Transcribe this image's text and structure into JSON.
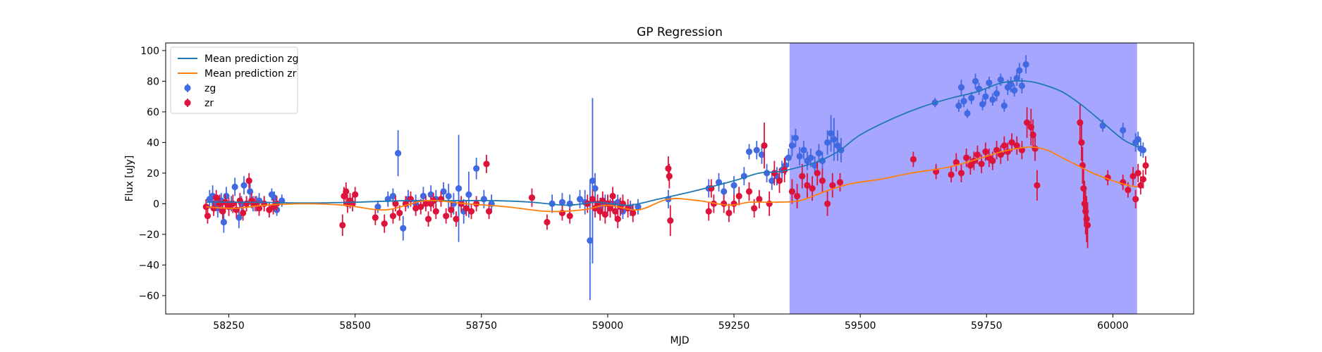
{
  "chart_data": {
    "type": "scatter",
    "title": "GP Regression",
    "xlabel": "MJD",
    "ylabel": "Flux [uJy]",
    "xlim": [
      58125,
      60160
    ],
    "ylim": [
      -72,
      105
    ],
    "xticks": [
      58250,
      58500,
      58750,
      59000,
      59250,
      59500,
      59750,
      60000
    ],
    "yticks": [
      -60,
      -40,
      -20,
      0,
      20,
      40,
      60,
      80,
      100
    ],
    "shaded_region": {
      "x0": 59360,
      "x1": 60048,
      "color": "#a6a6ff"
    },
    "legend_position": "upper left",
    "legend": [
      "Mean prediction zg",
      "Mean prediction zr",
      "zg",
      "zr"
    ],
    "series": [
      {
        "name": "Mean prediction zg",
        "kind": "line",
        "color": "#1f77b4",
        "x": [
          58205,
          58300,
          58400,
          58500,
          58600,
          58700,
          58780,
          58850,
          58920,
          58980,
          59040,
          59100,
          59180,
          59250,
          59300,
          59340,
          59380,
          59420,
          59460,
          59500,
          59560,
          59620,
          59680,
          59730,
          59770,
          59800,
          59830,
          59860,
          59900,
          59940,
          59980,
          60020,
          60050
        ],
        "values": [
          1,
          1,
          0.5,
          1,
          2,
          2,
          2,
          1,
          -1,
          1,
          -1,
          3,
          9,
          15,
          20,
          21,
          24,
          28,
          35,
          45,
          55,
          63,
          69,
          73,
          78,
          80,
          80,
          78,
          73,
          64,
          53,
          42,
          37
        ]
      },
      {
        "name": "Mean prediction zr",
        "kind": "line",
        "color": "#ff7f0e",
        "x": [
          58205,
          58260,
          58320,
          58400,
          58480,
          58560,
          58640,
          58720,
          58800,
          58880,
          58950,
          59000,
          59060,
          59120,
          59180,
          59240,
          59280,
          59330,
          59380,
          59430,
          59480,
          59540,
          59600,
          59660,
          59700,
          59740,
          59780,
          59810,
          59840,
          59870,
          59900,
          59930,
          59960,
          60000,
          60030,
          60050
        ],
        "values": [
          -2,
          -3,
          -1,
          0,
          -1,
          -4,
          2,
          0,
          -2,
          -5,
          -4,
          -1,
          -4,
          3,
          2,
          -1,
          1,
          1,
          2,
          8,
          13,
          16,
          20,
          23,
          26,
          30,
          34,
          36,
          37,
          35,
          30,
          25,
          20,
          15,
          12,
          11
        ]
      },
      {
        "name": "zg",
        "kind": "errorbar",
        "color": "#4169e1",
        "x": [
          58212,
          58218,
          58222,
          58228,
          58235,
          58240,
          58245,
          58255,
          58262,
          58270,
          58275,
          58280,
          58285,
          58292,
          58298,
          58305,
          58310,
          58320,
          58335,
          58340,
          58345,
          58355,
          58490,
          58545,
          58565,
          58575,
          58585,
          58595,
          58605,
          58620,
          58635,
          58650,
          58660,
          58675,
          58685,
          58695,
          58705,
          58715,
          58725,
          58740,
          58755,
          58770,
          58890,
          58910,
          58925,
          58945,
          58955,
          58965,
          58970,
          58975,
          58980,
          58985,
          58990,
          58995,
          59000,
          59010,
          59020,
          59030,
          59045,
          59060,
          59120,
          59200,
          59220,
          59230,
          59250,
          59270,
          59280,
          59295,
          59305,
          59315,
          59325,
          59335,
          59345,
          59352,
          59358,
          59365,
          59372,
          59380,
          59388,
          59395,
          59402,
          59410,
          59418,
          59425,
          59435,
          59442,
          59448,
          59455,
          59462,
          59648,
          59695,
          59700,
          59705,
          59712,
          59720,
          59728,
          59735,
          59742,
          59748,
          59755,
          59762,
          59770,
          59778,
          59785,
          59792,
          59798,
          59805,
          59810,
          59815,
          59820,
          59828,
          59980,
          60020,
          60045,
          60050,
          60055,
          60060
        ],
        "values": [
          3,
          5,
          0,
          -3,
          2,
          -12,
          5,
          0,
          11,
          -9,
          0,
          12,
          0,
          8,
          0,
          0,
          2,
          0,
          6,
          4,
          -4,
          2,
          1,
          -2,
          3,
          5,
          33,
          -16,
          3,
          0,
          5,
          6,
          3,
          8,
          5,
          0,
          10,
          -5,
          6,
          23,
          3,
          0,
          0,
          1,
          0,
          3,
          1,
          -24,
          15,
          10,
          0,
          -2,
          0,
          0,
          0,
          0,
          1,
          -5,
          -3,
          -2,
          3,
          10,
          14,
          8,
          12,
          18,
          34,
          35,
          32,
          20,
          15,
          18,
          22,
          25,
          30,
          38,
          43,
          31,
          35,
          28,
          30,
          25,
          33,
          28,
          40,
          46,
          42,
          38,
          35,
          66,
          64,
          76,
          67,
          59,
          69,
          80,
          75,
          65,
          70,
          79,
          68,
          72,
          81,
          64,
          76,
          78,
          74,
          82,
          87,
          77,
          91,
          51,
          48,
          40,
          42,
          36,
          35
        ],
        "errors": [
          6,
          7,
          5,
          6,
          5,
          7,
          6,
          5,
          6,
          7,
          5,
          6,
          5,
          6,
          5,
          5,
          5,
          5,
          4,
          4,
          4,
          4,
          4,
          4,
          5,
          5,
          15,
          8,
          6,
          6,
          6,
          6,
          6,
          6,
          8,
          7,
          35,
          8,
          15,
          7,
          6,
          6,
          6,
          6,
          6,
          6,
          8,
          39,
          54,
          10,
          6,
          6,
          6,
          6,
          5,
          5,
          5,
          5,
          5,
          5,
          6,
          6,
          6,
          6,
          6,
          6,
          5,
          6,
          6,
          6,
          6,
          6,
          6,
          6,
          6,
          7,
          6,
          6,
          6,
          6,
          6,
          6,
          6,
          6,
          8,
          12,
          14,
          10,
          8,
          3,
          4,
          5,
          4,
          3,
          4,
          5,
          4,
          4,
          5,
          4,
          4,
          5,
          4,
          4,
          5,
          5,
          4,
          5,
          5,
          5,
          6,
          4,
          5,
          6,
          5,
          5,
          5
        ]
      },
      {
        "name": "zr",
        "kind": "errorbar",
        "color": "#dc143c",
        "x": [
          58205,
          58208,
          58220,
          58225,
          58232,
          58238,
          58243,
          58250,
          58258,
          58265,
          58272,
          58278,
          58285,
          58290,
          58295,
          58302,
          58310,
          58320,
          58330,
          58338,
          58345,
          58475,
          58478,
          58482,
          58485,
          58490,
          58495,
          58500,
          58540,
          58558,
          58575,
          58580,
          58588,
          58600,
          58610,
          58620,
          58630,
          58640,
          58645,
          58650,
          58655,
          58660,
          58670,
          58680,
          58690,
          58700,
          58710,
          58720,
          58730,
          58740,
          58760,
          58765,
          58850,
          58880,
          58910,
          58925,
          58960,
          58970,
          58975,
          58980,
          58985,
          58990,
          58995,
          59000,
          59005,
          59010,
          59015,
          59020,
          59025,
          59030,
          59040,
          59050,
          59120,
          59122,
          59124,
          59200,
          59205,
          59210,
          59230,
          59240,
          59250,
          59260,
          59280,
          59290,
          59300,
          59310,
          59320,
          59330,
          59340,
          59350,
          59365,
          59375,
          59385,
          59395,
          59405,
          59415,
          59425,
          59435,
          59445,
          59460,
          59605,
          59650,
          59680,
          59690,
          59700,
          59710,
          59718,
          59725,
          59732,
          59740,
          59748,
          59755,
          59762,
          59770,
          59778,
          59785,
          59792,
          59800,
          59810,
          59820,
          59830,
          59838,
          59842,
          59846,
          59850,
          59935,
          59938,
          59940,
          59942,
          59944,
          59946,
          59948,
          59950,
          59990,
          60020,
          60030,
          60040,
          60045,
          60050,
          60055,
          60060,
          60065
        ],
        "values": [
          -2,
          -8,
          -3,
          4,
          0,
          -5,
          1,
          -2,
          0,
          -4,
          2,
          -6,
          0,
          15,
          2,
          0,
          -3,
          0,
          -4,
          -2,
          0,
          -14,
          5,
          8,
          0,
          2,
          0,
          6,
          -9,
          -13,
          -8,
          0,
          -6,
          0,
          3,
          -3,
          -2,
          0,
          -10,
          0,
          2,
          -5,
          3,
          -8,
          -4,
          -10,
          0,
          -3,
          -5,
          0,
          26,
          -5,
          4,
          -12,
          -6,
          -8,
          0,
          3,
          -3,
          0,
          -5,
          2,
          -7,
          0,
          -3,
          5,
          -5,
          -10,
          -2,
          0,
          -3,
          -6,
          23,
          18,
          -11,
          -5,
          10,
          0,
          0,
          -6,
          0,
          5,
          8,
          -3,
          3,
          38,
          0,
          20,
          15,
          22,
          8,
          5,
          18,
          12,
          10,
          20,
          15,
          0,
          12,
          14,
          29,
          21,
          19,
          27,
          20,
          30,
          25,
          28,
          32,
          26,
          34,
          30,
          28,
          35,
          32,
          38,
          34,
          40,
          38,
          35,
          53,
          50,
          45,
          36,
          12,
          53,
          40,
          25,
          10,
          0,
          -5,
          -10,
          -14,
          17,
          14,
          9,
          18,
          3,
          20,
          12,
          16,
          25
        ],
        "errors": [
          5,
          5,
          5,
          5,
          6,
          5,
          5,
          6,
          6,
          5,
          5,
          5,
          5,
          5,
          5,
          5,
          5,
          5,
          5,
          5,
          5,
          7,
          6,
          6,
          6,
          5,
          5,
          5,
          5,
          6,
          5,
          5,
          5,
          5,
          5,
          5,
          5,
          5,
          5,
          5,
          5,
          5,
          5,
          5,
          5,
          5,
          5,
          5,
          5,
          5,
          6,
          5,
          6,
          5,
          5,
          5,
          6,
          6,
          6,
          6,
          6,
          6,
          6,
          6,
          6,
          6,
          6,
          6,
          6,
          6,
          6,
          6,
          8,
          8,
          10,
          6,
          6,
          6,
          6,
          6,
          6,
          6,
          6,
          6,
          6,
          15,
          8,
          8,
          8,
          8,
          8,
          8,
          8,
          8,
          8,
          8,
          8,
          8,
          8,
          6,
          5,
          5,
          5,
          6,
          6,
          6,
          6,
          6,
          6,
          6,
          6,
          6,
          6,
          6,
          6,
          6,
          6,
          6,
          6,
          6,
          10,
          12,
          10,
          8,
          10,
          12,
          12,
          12,
          15,
          15,
          15,
          15,
          15,
          5,
          5,
          5,
          6,
          6,
          6,
          6,
          6,
          6
        ]
      }
    ]
  }
}
